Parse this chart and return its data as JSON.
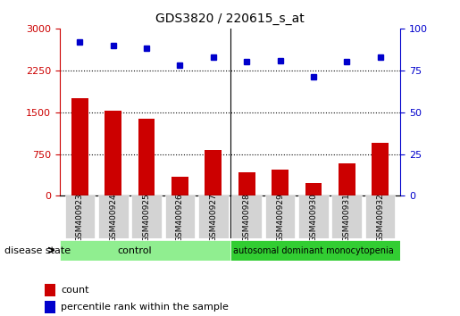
{
  "title": "GDS3820 / 220615_s_at",
  "samples": [
    "GSM400923",
    "GSM400924",
    "GSM400925",
    "GSM400926",
    "GSM400927",
    "GSM400928",
    "GSM400929",
    "GSM400930",
    "GSM400931",
    "GSM400932"
  ],
  "counts": [
    1750,
    1530,
    1380,
    350,
    820,
    430,
    470,
    230,
    580,
    950
  ],
  "percentiles": [
    92,
    90,
    88,
    78,
    83,
    80,
    81,
    71,
    80,
    83
  ],
  "ylim_left": [
    0,
    3000
  ],
  "ylim_right": [
    0,
    100
  ],
  "yticks_left": [
    0,
    750,
    1500,
    2250,
    3000
  ],
  "yticks_right": [
    0,
    25,
    50,
    75,
    100
  ],
  "bar_color": "#cc0000",
  "dot_color": "#0000cc",
  "n_control": 5,
  "control_label": "control",
  "disease_label": "autosomal dominant monocytopenia",
  "group_label": "disease state",
  "legend_count": "count",
  "legend_pct": "percentile rank within the sample",
  "control_color": "#90ee90",
  "disease_color": "#32cd32",
  "bg_color": "#ffffff"
}
